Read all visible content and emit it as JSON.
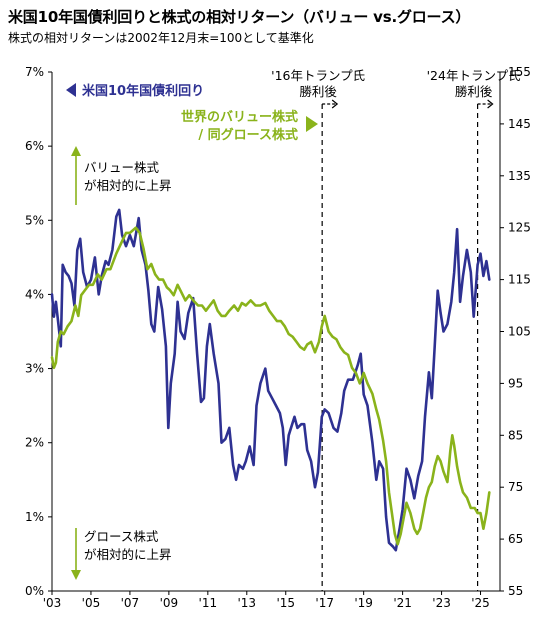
{
  "header": {
    "title": "米国10年国債利回りと株式の相対リターン（バリュー vs.グロース）",
    "subtitle": "株式の相対リターンは2002年12月末=100として基準化"
  },
  "chart_data": {
    "type": "line",
    "x_range": [
      2003.0,
      2026.0
    ],
    "x_ticks": [
      {
        "x": 2003,
        "label": "'03"
      },
      {
        "x": 2005,
        "label": "'05"
      },
      {
        "x": 2007,
        "label": "'07"
      },
      {
        "x": 2009,
        "label": "'09"
      },
      {
        "x": 2011,
        "label": "'11"
      },
      {
        "x": 2013,
        "label": "'13"
      },
      {
        "x": 2015,
        "label": "'15"
      },
      {
        "x": 2017,
        "label": "'17"
      },
      {
        "x": 2019,
        "label": "'19"
      },
      {
        "x": 2021,
        "label": "'21"
      },
      {
        "x": 2023,
        "label": "'23"
      },
      {
        "x": 2025,
        "label": "'25"
      }
    ],
    "y_left": {
      "range": [
        0,
        7
      ],
      "ticks": [
        "0%",
        "1%",
        "2%",
        "3%",
        "4%",
        "5%",
        "6%",
        "7%"
      ]
    },
    "y_right": {
      "range": [
        55,
        155
      ],
      "ticks": [
        "55",
        "65",
        "75",
        "85",
        "95",
        "105",
        "115",
        "125",
        "135",
        "145",
        "155"
      ]
    },
    "grid": false,
    "series": [
      {
        "name": "米国10年国債利回り",
        "axis": "left",
        "color": "#2e3192",
        "points": [
          [
            2003.0,
            4.0
          ],
          [
            2003.1,
            3.7
          ],
          [
            2003.2,
            3.9
          ],
          [
            2003.35,
            3.55
          ],
          [
            2003.45,
            3.3
          ],
          [
            2003.55,
            4.4
          ],
          [
            2003.7,
            4.3
          ],
          [
            2003.85,
            4.25
          ],
          [
            2004.0,
            4.15
          ],
          [
            2004.15,
            3.85
          ],
          [
            2004.3,
            4.6
          ],
          [
            2004.45,
            4.75
          ],
          [
            2004.6,
            4.3
          ],
          [
            2004.8,
            4.1
          ],
          [
            2005.0,
            4.2
          ],
          [
            2005.2,
            4.5
          ],
          [
            2005.4,
            4.0
          ],
          [
            2005.55,
            4.25
          ],
          [
            2005.75,
            4.45
          ],
          [
            2005.9,
            4.4
          ],
          [
            2006.1,
            4.6
          ],
          [
            2006.3,
            5.05
          ],
          [
            2006.45,
            5.14
          ],
          [
            2006.6,
            4.8
          ],
          [
            2006.8,
            4.65
          ],
          [
            2007.0,
            4.8
          ],
          [
            2007.2,
            4.65
          ],
          [
            2007.45,
            5.03
          ],
          [
            2007.6,
            4.6
          ],
          [
            2007.8,
            4.4
          ],
          [
            2007.95,
            4.05
          ],
          [
            2008.1,
            3.6
          ],
          [
            2008.25,
            3.5
          ],
          [
            2008.45,
            4.1
          ],
          [
            2008.65,
            3.8
          ],
          [
            2008.85,
            3.3
          ],
          [
            2008.97,
            2.2
          ],
          [
            2009.1,
            2.8
          ],
          [
            2009.3,
            3.2
          ],
          [
            2009.45,
            3.9
          ],
          [
            2009.6,
            3.5
          ],
          [
            2009.8,
            3.4
          ],
          [
            2010.0,
            3.75
          ],
          [
            2010.25,
            3.95
          ],
          [
            2010.45,
            3.2
          ],
          [
            2010.65,
            2.55
          ],
          [
            2010.8,
            2.6
          ],
          [
            2010.95,
            3.3
          ],
          [
            2011.1,
            3.6
          ],
          [
            2011.3,
            3.2
          ],
          [
            2011.55,
            2.8
          ],
          [
            2011.7,
            2.0
          ],
          [
            2011.9,
            2.05
          ],
          [
            2012.1,
            2.2
          ],
          [
            2012.3,
            1.7
          ],
          [
            2012.45,
            1.5
          ],
          [
            2012.6,
            1.7
          ],
          [
            2012.8,
            1.65
          ],
          [
            2012.95,
            1.75
          ],
          [
            2013.15,
            1.95
          ],
          [
            2013.35,
            1.7
          ],
          [
            2013.5,
            2.5
          ],
          [
            2013.7,
            2.8
          ],
          [
            2013.95,
            3.0
          ],
          [
            2014.1,
            2.7
          ],
          [
            2014.3,
            2.6
          ],
          [
            2014.5,
            2.5
          ],
          [
            2014.7,
            2.4
          ],
          [
            2014.85,
            2.2
          ],
          [
            2015.0,
            1.7
          ],
          [
            2015.15,
            2.1
          ],
          [
            2015.45,
            2.35
          ],
          [
            2015.6,
            2.2
          ],
          [
            2015.8,
            2.25
          ],
          [
            2015.95,
            2.25
          ],
          [
            2016.1,
            1.9
          ],
          [
            2016.3,
            1.75
          ],
          [
            2016.5,
            1.4
          ],
          [
            2016.65,
            1.6
          ],
          [
            2016.85,
            2.35
          ],
          [
            2017.0,
            2.45
          ],
          [
            2017.2,
            2.4
          ],
          [
            2017.45,
            2.2
          ],
          [
            2017.65,
            2.15
          ],
          [
            2017.85,
            2.4
          ],
          [
            2018.0,
            2.7
          ],
          [
            2018.2,
            2.85
          ],
          [
            2018.45,
            2.85
          ],
          [
            2018.7,
            3.05
          ],
          [
            2018.85,
            3.2
          ],
          [
            2019.0,
            2.65
          ],
          [
            2019.2,
            2.5
          ],
          [
            2019.45,
            2.0
          ],
          [
            2019.65,
            1.5
          ],
          [
            2019.8,
            1.75
          ],
          [
            2020.0,
            1.65
          ],
          [
            2020.15,
            1.0
          ],
          [
            2020.3,
            0.65
          ],
          [
            2020.5,
            0.6
          ],
          [
            2020.65,
            0.55
          ],
          [
            2020.85,
            0.85
          ],
          [
            2021.0,
            1.1
          ],
          [
            2021.2,
            1.65
          ],
          [
            2021.4,
            1.5
          ],
          [
            2021.6,
            1.25
          ],
          [
            2021.8,
            1.55
          ],
          [
            2022.0,
            1.75
          ],
          [
            2022.15,
            2.35
          ],
          [
            2022.35,
            2.95
          ],
          [
            2022.5,
            2.6
          ],
          [
            2022.65,
            3.3
          ],
          [
            2022.8,
            4.05
          ],
          [
            2022.95,
            3.75
          ],
          [
            2023.1,
            3.5
          ],
          [
            2023.3,
            3.6
          ],
          [
            2023.5,
            3.9
          ],
          [
            2023.65,
            4.3
          ],
          [
            2023.8,
            4.88
          ],
          [
            2023.95,
            3.9
          ],
          [
            2024.1,
            4.25
          ],
          [
            2024.3,
            4.6
          ],
          [
            2024.5,
            4.3
          ],
          [
            2024.65,
            3.7
          ],
          [
            2024.85,
            4.4
          ],
          [
            2025.0,
            4.55
          ],
          [
            2025.15,
            4.25
          ],
          [
            2025.3,
            4.45
          ],
          [
            2025.45,
            4.2
          ]
        ]
      },
      {
        "name": "世界のバリュー株式 / 同グロース株式",
        "axis": "right",
        "color": "#8ab31b",
        "points": [
          [
            2003.0,
            100
          ],
          [
            2003.1,
            98
          ],
          [
            2003.2,
            99
          ],
          [
            2003.3,
            103
          ],
          [
            2003.45,
            105
          ],
          [
            2003.6,
            104.5
          ],
          [
            2003.8,
            106
          ],
          [
            2004.0,
            107
          ],
          [
            2004.2,
            110
          ],
          [
            2004.35,
            108
          ],
          [
            2004.5,
            112
          ],
          [
            2004.7,
            113
          ],
          [
            2004.9,
            114
          ],
          [
            2005.1,
            114
          ],
          [
            2005.35,
            116
          ],
          [
            2005.55,
            115
          ],
          [
            2005.8,
            117
          ],
          [
            2006.0,
            117
          ],
          [
            2006.3,
            120
          ],
          [
            2006.55,
            122
          ],
          [
            2006.8,
            124
          ],
          [
            2007.0,
            124
          ],
          [
            2007.3,
            125
          ],
          [
            2007.5,
            124
          ],
          [
            2007.7,
            121
          ],
          [
            2007.9,
            117
          ],
          [
            2008.1,
            118
          ],
          [
            2008.3,
            116
          ],
          [
            2008.5,
            115
          ],
          [
            2008.7,
            115
          ],
          [
            2008.9,
            113.5
          ],
          [
            2009.05,
            113
          ],
          [
            2009.25,
            112
          ],
          [
            2009.45,
            114
          ],
          [
            2009.65,
            112.5
          ],
          [
            2009.85,
            111
          ],
          [
            2010.05,
            112
          ],
          [
            2010.25,
            111
          ],
          [
            2010.5,
            110
          ],
          [
            2010.7,
            110
          ],
          [
            2010.9,
            109
          ],
          [
            2011.1,
            110
          ],
          [
            2011.3,
            111
          ],
          [
            2011.5,
            109
          ],
          [
            2011.7,
            108
          ],
          [
            2011.9,
            108
          ],
          [
            2012.1,
            109
          ],
          [
            2012.35,
            110
          ],
          [
            2012.55,
            109
          ],
          [
            2012.75,
            110.5
          ],
          [
            2012.95,
            110
          ],
          [
            2013.2,
            111
          ],
          [
            2013.45,
            110
          ],
          [
            2013.7,
            110
          ],
          [
            2013.95,
            110.5
          ],
          [
            2014.15,
            109
          ],
          [
            2014.35,
            108
          ],
          [
            2014.55,
            107
          ],
          [
            2014.75,
            107
          ],
          [
            2014.95,
            106
          ],
          [
            2015.15,
            104.5
          ],
          [
            2015.35,
            104
          ],
          [
            2015.55,
            103
          ],
          [
            2015.75,
            102
          ],
          [
            2015.95,
            101.5
          ],
          [
            2016.1,
            102.5
          ],
          [
            2016.3,
            103
          ],
          [
            2016.5,
            101
          ],
          [
            2016.7,
            103
          ],
          [
            2016.85,
            106
          ],
          [
            2017.0,
            108
          ],
          [
            2017.2,
            105
          ],
          [
            2017.4,
            104
          ],
          [
            2017.6,
            103.5
          ],
          [
            2017.8,
            102
          ],
          [
            2018.0,
            101
          ],
          [
            2018.2,
            100.5
          ],
          [
            2018.4,
            98
          ],
          [
            2018.6,
            97
          ],
          [
            2018.8,
            95
          ],
          [
            2019.0,
            97
          ],
          [
            2019.2,
            95
          ],
          [
            2019.45,
            93
          ],
          [
            2019.65,
            90
          ],
          [
            2019.8,
            88
          ],
          [
            2020.0,
            84
          ],
          [
            2020.15,
            80
          ],
          [
            2020.3,
            74
          ],
          [
            2020.45,
            70
          ],
          [
            2020.6,
            66
          ],
          [
            2020.75,
            64
          ],
          [
            2020.9,
            66
          ],
          [
            2021.05,
            69
          ],
          [
            2021.2,
            72
          ],
          [
            2021.4,
            70
          ],
          [
            2021.6,
            67
          ],
          [
            2021.75,
            66
          ],
          [
            2021.9,
            67
          ],
          [
            2022.05,
            70
          ],
          [
            2022.2,
            73
          ],
          [
            2022.35,
            75
          ],
          [
            2022.5,
            76
          ],
          [
            2022.65,
            79
          ],
          [
            2022.8,
            81
          ],
          [
            2022.95,
            80
          ],
          [
            2023.1,
            78
          ],
          [
            2023.3,
            76
          ],
          [
            2023.45,
            82
          ],
          [
            2023.55,
            85
          ],
          [
            2023.65,
            83
          ],
          [
            2023.8,
            79
          ],
          [
            2023.95,
            76
          ],
          [
            2024.1,
            74
          ],
          [
            2024.3,
            73
          ],
          [
            2024.5,
            71
          ],
          [
            2024.7,
            71
          ],
          [
            2024.85,
            70
          ],
          [
            2025.0,
            70
          ],
          [
            2025.15,
            67
          ],
          [
            2025.3,
            70
          ],
          [
            2025.45,
            74
          ]
        ]
      }
    ],
    "vlines": [
      {
        "x": 2016.87,
        "label_lines": [
          "'16年トランプ氏",
          "勝利後"
        ]
      },
      {
        "x": 2024.85,
        "label_lines": [
          "'24年トランプ氏",
          "勝利後"
        ]
      }
    ],
    "annotations": {
      "left_series_label": "米国10年国債利回り",
      "right_series_label_lines": [
        "世界のバリュー株式",
        "/ 同グロース株式"
      ],
      "value_outperform_lines": [
        "バリュー株式",
        "が相対的に上昇"
      ],
      "growth_outperform_lines": [
        "グロース株式",
        "が相対的に上昇"
      ]
    }
  }
}
